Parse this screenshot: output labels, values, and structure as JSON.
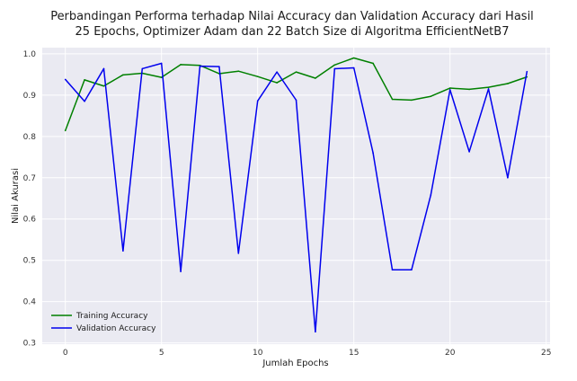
{
  "chart_data": {
    "type": "line",
    "title_line1": "Perbandingan Performa terhadap Nilai Accuracy dan Validation Accuracy dari Hasil",
    "title_line2": "25 Epochs, Optimizer Adam dan 22 Batch Size di Algoritma EfficientNetB7",
    "xlabel": "Jumlah Epochs",
    "ylabel": "Nilai Akurasi",
    "xlim": [
      -1.2,
      25.2
    ],
    "ylim": [
      0.297,
      1.015
    ],
    "xticks": [
      0,
      5,
      10,
      15,
      20,
      25
    ],
    "yticks": [
      0.3,
      0.4,
      0.5,
      0.6,
      0.7,
      0.8,
      0.9,
      1.0
    ],
    "xtick_labels": [
      "0",
      "5",
      "10",
      "15",
      "20",
      "25"
    ],
    "ytick_labels": [
      "0.3",
      "0.4",
      "0.5",
      "0.6",
      "0.7",
      "0.8",
      "0.9",
      "1.0"
    ],
    "grid": true,
    "legend_position": "lower-left",
    "x": [
      0,
      1,
      2,
      3,
      4,
      5,
      6,
      7,
      8,
      9,
      10,
      11,
      12,
      13,
      14,
      15,
      16,
      17,
      18,
      19,
      20,
      21,
      22,
      23,
      24
    ],
    "series": [
      {
        "name": "Training Accuracy",
        "color": "#008000",
        "values": [
          0.814,
          0.937,
          0.922,
          0.949,
          0.953,
          0.943,
          0.974,
          0.972,
          0.952,
          0.958,
          0.945,
          0.93,
          0.956,
          0.941,
          0.973,
          0.99,
          0.977,
          0.89,
          0.888,
          0.897,
          0.917,
          0.914,
          0.919,
          0.928,
          0.944
        ]
      },
      {
        "name": "Validation Accuracy",
        "color": "#0000ee",
        "values": [
          0.938,
          0.885,
          0.964,
          0.523,
          0.964,
          0.977,
          0.473,
          0.97,
          0.969,
          0.517,
          0.886,
          0.956,
          0.888,
          0.327,
          0.964,
          0.966,
          0.76,
          0.477,
          0.477,
          0.658,
          0.913,
          0.763,
          0.915,
          0.7,
          0.957
        ]
      }
    ]
  }
}
